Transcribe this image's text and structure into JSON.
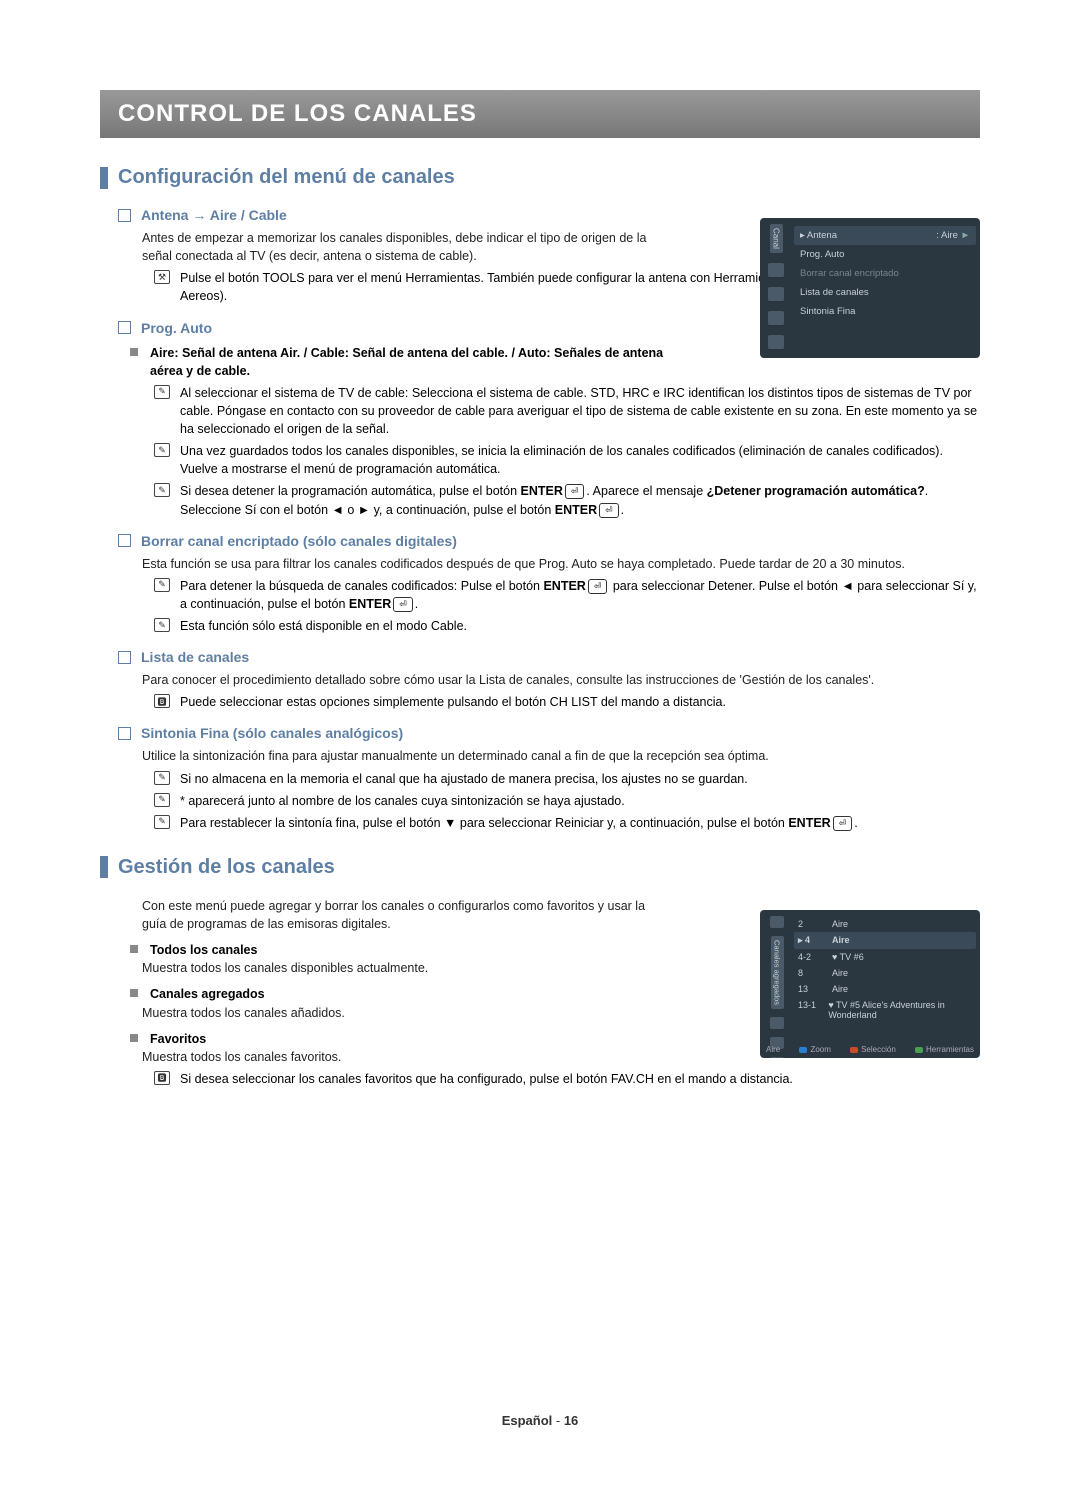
{
  "chapter_title": "CONTROL DE LOS CANALES",
  "section1": {
    "title": "Configuración del menú de canales",
    "antena": {
      "heading": "Antena → Aire / Cable",
      "intro": "Antes de empezar a memorizar los canales disponibles, debe indicar el tipo de origen de la señal conectada al TV (es decir, antena o sistema de cable).",
      "tools_note": "Pulse el botón TOOLS para ver el menú Herramientas. También puede configurar la antena con Herramientas → Cambiar a Cable (o Cambiar a Aereos)."
    },
    "prog_auto": {
      "heading": "Prog. Auto",
      "bold_line": "Aire: Señal de antena Air. / Cable: Señal de antena del cable. / Auto: Señales de antena aérea y de cable.",
      "n1": "Al seleccionar el sistema de TV de cable: Selecciona el sistema de cable. STD, HRC e IRC identifican los distintos tipos de sistemas de TV por cable. Póngase en contacto con su proveedor de cable para averiguar el tipo de sistema de cable existente en su zona. En este momento ya se ha seleccionado el origen de la señal.",
      "n2": "Una vez guardados todos los canales disponibles, se inicia la eliminación de los canales codificados (eliminación de canales codificados). Vuelve a mostrarse el menú de programación automática.",
      "n3_a": "Si desea detener la programación automática, pulse el botón ",
      "n3_enter1": "ENTER",
      "n3_b": ". Aparece el mensaje ",
      "n3_bold": "¿Detener programación automática?",
      "n3_c": ". Seleccione Sí con el botón ◄ o ► y, a continuación, pulse el botón ",
      "n3_enter2": "ENTER"
    },
    "borrar": {
      "heading": "Borrar canal encriptado (sólo canales digitales)",
      "intro": "Esta función se usa para filtrar los canales codificados después de que Prog. Auto se haya completado. Puede tardar de 20 a 30 minutos.",
      "n1_a": "Para detener la búsqueda de canales codificados: Pulse el botón ",
      "n1_enter1": "ENTER",
      "n1_b": " para seleccionar Detener. Pulse el botón ◄ para seleccionar Sí y, a continuación, pulse el botón ",
      "n1_enter2": "ENTER",
      "n2": "Esta función sólo está disponible en el modo Cable."
    },
    "lista": {
      "heading": "Lista de canales",
      "intro": "Para conocer el procedimiento detallado sobre cómo usar la Lista de canales, consulte las instrucciones de 'Gestión de los canales'.",
      "b1": "Puede seleccionar estas opciones simplemente pulsando el botón CH LIST del mando a distancia."
    },
    "sintonia": {
      "heading": "Sintonia Fina (sólo canales analógicos)",
      "intro": "Utilice la sintonización fina para ajustar manualmente un determinado canal a fin de que la recepción sea óptima.",
      "n1": "Si no almacena en la memoria el canal que ha ajustado de manera precisa, los ajustes no se guardan.",
      "n2": "* aparecerá junto al nombre de los canales cuya sintonización se haya ajustado.",
      "n3_a": "Para restablecer la sintonía fina, pulse el botón ▼ para seleccionar Reiniciar y, a continuación, pulse el botón ",
      "n3_enter": "ENTER"
    }
  },
  "section2": {
    "title": "Gestión de los canales",
    "intro": "Con este menú puede agregar y borrar los canales o configurarlos como favoritos y usar la guía de programas de las emisoras digitales.",
    "items": [
      {
        "title": "Todos los canales",
        "desc": "Muestra todos los canales disponibles actualmente."
      },
      {
        "title": "Canales agregados",
        "desc": "Muestra todos los canales añadidos."
      },
      {
        "title": "Favoritos",
        "desc": "Muestra todos los canales favoritos."
      }
    ],
    "b_note": "Si desea seleccionar los canales favoritos que ha configurado, pulse el botón FAV.CH en el mando a distancia."
  },
  "osd1": {
    "tab": "Canal",
    "rows": [
      {
        "label": "▸ Antena",
        "value": ": Aire",
        "arrow": "►",
        "sel": true
      },
      {
        "label": "Prog. Auto",
        "value": "",
        "sel": false
      },
      {
        "label": "Borrar canal encriptado",
        "value": "",
        "sel": false,
        "dim": true
      },
      {
        "label": "Lista de canales",
        "value": "",
        "sel": false
      },
      {
        "label": "Sintonia Fina",
        "value": "",
        "sel": false
      }
    ]
  },
  "osd2": {
    "tab": "Canales agregados",
    "air_label": "Aire",
    "rows": [
      {
        "num": "2",
        "name": "Aire"
      },
      {
        "num": "▸ 4",
        "name": "Aire",
        "sel": true
      },
      {
        "num": "4-2",
        "name": "♥ TV #6"
      },
      {
        "num": "8",
        "name": "Aire"
      },
      {
        "num": "13",
        "name": "Aire"
      },
      {
        "num": "13-1",
        "name": "♥ TV #5   Alice's Adventures in Wonderland"
      }
    ],
    "foot": {
      "zoom": "Zoom",
      "sel": "Selección",
      "tools": "Herramientas",
      "zoom_color": "#2a7fd0",
      "sel_color": "#d04a2a",
      "tools_color": "#4aa050"
    }
  },
  "footer": {
    "lang": "Español",
    "sep": " - ",
    "page": "16"
  },
  "colors": {
    "banner_bg": "#808080",
    "accent": "#5e7fa3",
    "osd_bg": "#2a3640"
  }
}
